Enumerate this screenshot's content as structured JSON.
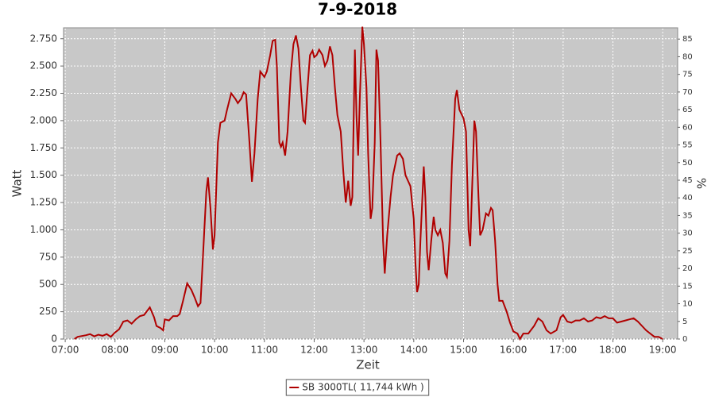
{
  "chart_data": {
    "type": "line",
    "title": "7-9-2018",
    "x_label": "Zeit",
    "y_label": "Watt",
    "y2_label": "%",
    "grid": true,
    "legend": "bottom",
    "xlim": [
      "06:58",
      "19:18"
    ],
    "xticks": [
      "07:00",
      "08:00",
      "09:00",
      "10:00",
      "11:00",
      "12:00",
      "13:00",
      "14:00",
      "15:00",
      "16:00",
      "17:00",
      "18:00",
      "19:00"
    ],
    "ylim": [
      0,
      2850
    ],
    "yticks": [
      0,
      250,
      500,
      750,
      {
        "value": 1000,
        "label": "1.000"
      },
      {
        "value": 1250,
        "label": "1.250"
      },
      {
        "value": 1500,
        "label": "1.500"
      },
      {
        "value": 1750,
        "label": "1.750"
      },
      {
        "value": 2000,
        "label": "2.000"
      },
      {
        "value": 2250,
        "label": "2.250"
      },
      {
        "value": 2500,
        "label": "2.500"
      },
      {
        "value": 2750,
        "label": "2.750"
      }
    ],
    "y2lim": [
      0,
      88.2
    ],
    "y2ticks": [
      0,
      5,
      10,
      15,
      20,
      25,
      30,
      35,
      40,
      45,
      50,
      55,
      60,
      65,
      70,
      75,
      80,
      85
    ],
    "x": [
      "07:11",
      "07:15",
      "07:25",
      "07:30",
      "07:35",
      "07:40",
      "07:45",
      "07:50",
      "07:55",
      "08:00",
      "08:05",
      "08:10",
      "08:15",
      "08:20",
      "08:25",
      "08:30",
      "08:35",
      "08:40",
      "08:42",
      "08:47",
      "08:50",
      "08:55",
      "08:58",
      "09:00",
      "09:05",
      "09:10",
      "09:15",
      "09:18",
      "09:22",
      "09:27",
      "09:32",
      "09:36",
      "09:40",
      "09:43",
      "09:47",
      "09:50",
      "09:52",
      "09:55",
      "09:58",
      "10:00",
      "10:04",
      "10:07",
      "10:12",
      "10:15",
      "10:20",
      "10:25",
      "10:28",
      "10:32",
      "10:35",
      "10:38",
      "10:42",
      "10:45",
      "10:48",
      "10:52",
      "10:55",
      "11:00",
      "11:03",
      "11:07",
      "11:10",
      "11:13",
      "11:15",
      "11:18",
      "11:20",
      "11:22",
      "11:25",
      "11:28",
      "11:32",
      "11:35",
      "11:38",
      "11:41",
      "11:44",
      "11:47",
      "11:49",
      "11:52",
      "11:55",
      "11:58",
      "12:00",
      "12:03",
      "12:06",
      "12:10",
      "12:13",
      "12:16",
      "12:19",
      "12:22",
      "12:25",
      "12:28",
      "12:32",
      "12:35",
      "12:38",
      "12:41",
      "12:44",
      "12:46",
      "12:49",
      "12:51",
      "12:53",
      "12:55",
      "12:58",
      "13:00",
      "13:03",
      "13:05",
      "13:08",
      "13:10",
      "13:13",
      "13:15",
      "13:17",
      "13:20",
      "13:23",
      "13:25",
      "13:28",
      "13:32",
      "13:35",
      "13:40",
      "13:43",
      "13:47",
      "13:50",
      "13:53",
      "13:56",
      "14:00",
      "14:02",
      "14:04",
      "14:06",
      "14:08",
      "14:12",
      "14:14",
      "14:16",
      "14:18",
      "14:21",
      "14:24",
      "14:26",
      "14:29",
      "14:32",
      "14:35",
      "14:38",
      "14:40",
      "14:43",
      "14:46",
      "14:50",
      "14:52",
      "14:55",
      "15:00",
      "15:03",
      "15:06",
      "15:08",
      "15:10",
      "15:13",
      "15:15",
      "15:18",
      "15:20",
      "15:23",
      "15:27",
      "15:30",
      "15:33",
      "15:35",
      "15:38",
      "15:41",
      "15:43",
      "15:47",
      "15:52",
      "15:56",
      "16:00",
      "16:05",
      "16:08",
      "16:12",
      "16:18",
      "16:25",
      "16:30",
      "16:35",
      "16:40",
      "16:45",
      "16:52",
      "16:57",
      "17:00",
      "17:05",
      "17:10",
      "17:15",
      "17:20",
      "17:25",
      "17:30",
      "17:35",
      "17:40",
      "17:45",
      "17:50",
      "17:55",
      "18:00",
      "18:05",
      "18:10",
      "18:15",
      "18:20",
      "18:25",
      "18:30",
      "18:35",
      "18:40",
      "18:45",
      "18:50",
      "18:55",
      "19:00"
    ],
    "series": [
      {
        "name": "SB 3000TL( 11,744 kWh )",
        "color": "#b00000",
        "values": [
          0,
          20,
          35,
          45,
          25,
          40,
          30,
          45,
          20,
          60,
          90,
          160,
          170,
          140,
          180,
          210,
          220,
          270,
          290,
          200,
          120,
          100,
          80,
          180,
          170,
          210,
          210,
          230,
          350,
          510,
          450,
          380,
          300,
          330,
          900,
          1350,
          1480,
          1200,
          820,
          950,
          1800,
          1980,
          2000,
          2100,
          2250,
          2200,
          2160,
          2200,
          2260,
          2240,
          1800,
          1440,
          1700,
          2200,
          2450,
          2400,
          2450,
          2600,
          2730,
          2740,
          2500,
          1800,
          1760,
          1800,
          1680,
          1900,
          2450,
          2700,
          2780,
          2660,
          2300,
          2000,
          1980,
          2300,
          2600,
          2640,
          2580,
          2600,
          2650,
          2600,
          2500,
          2550,
          2680,
          2600,
          2300,
          2050,
          1900,
          1550,
          1250,
          1450,
          1220,
          1300,
          2650,
          2050,
          1680,
          2200,
          2860,
          2700,
          2300,
          1700,
          1100,
          1200,
          1800,
          2650,
          2550,
          1800,
          900,
          600,
          950,
          1300,
          1500,
          1680,
          1700,
          1650,
          1500,
          1450,
          1400,
          1100,
          700,
          430,
          500,
          900,
          1580,
          1300,
          800,
          630,
          900,
          1120,
          1000,
          950,
          1000,
          880,
          600,
          570,
          900,
          1600,
          2200,
          2280,
          2100,
          2020,
          1900,
          1000,
          850,
          1300,
          2000,
          1900,
          1300,
          950,
          1000,
          1150,
          1130,
          1200,
          1180,
          900,
          500,
          350,
          350,
          250,
          150,
          70,
          50,
          0,
          50,
          50,
          120,
          190,
          160,
          80,
          50,
          80,
          200,
          220,
          160,
          150,
          170,
          170,
          190,
          160,
          170,
          200,
          190,
          210,
          190,
          190,
          150,
          160,
          170,
          180,
          190,
          160,
          120,
          80,
          50,
          20,
          20,
          0
        ]
      }
    ]
  }
}
